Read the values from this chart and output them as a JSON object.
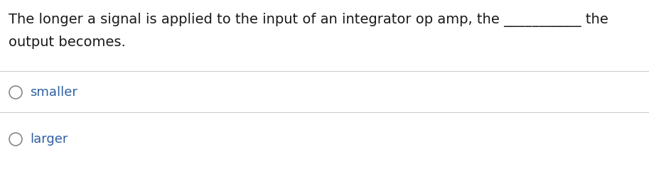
{
  "background_color": "#ffffff",
  "text_color_question": "#1a1a1a",
  "text_color_options": "#2E5FA3",
  "circle_color": "#888888",
  "question_line1": "The longer a signal is applied to the input of an integrator op amp, the ___________ the",
  "question_line2": "output becomes.",
  "options": [
    "smaller",
    "larger"
  ],
  "separator_color": "#CCCCCC",
  "font_size_question": 14,
  "font_size_options": 13,
  "fig_width": 9.13,
  "fig_height": 2.52,
  "dpi": 100
}
